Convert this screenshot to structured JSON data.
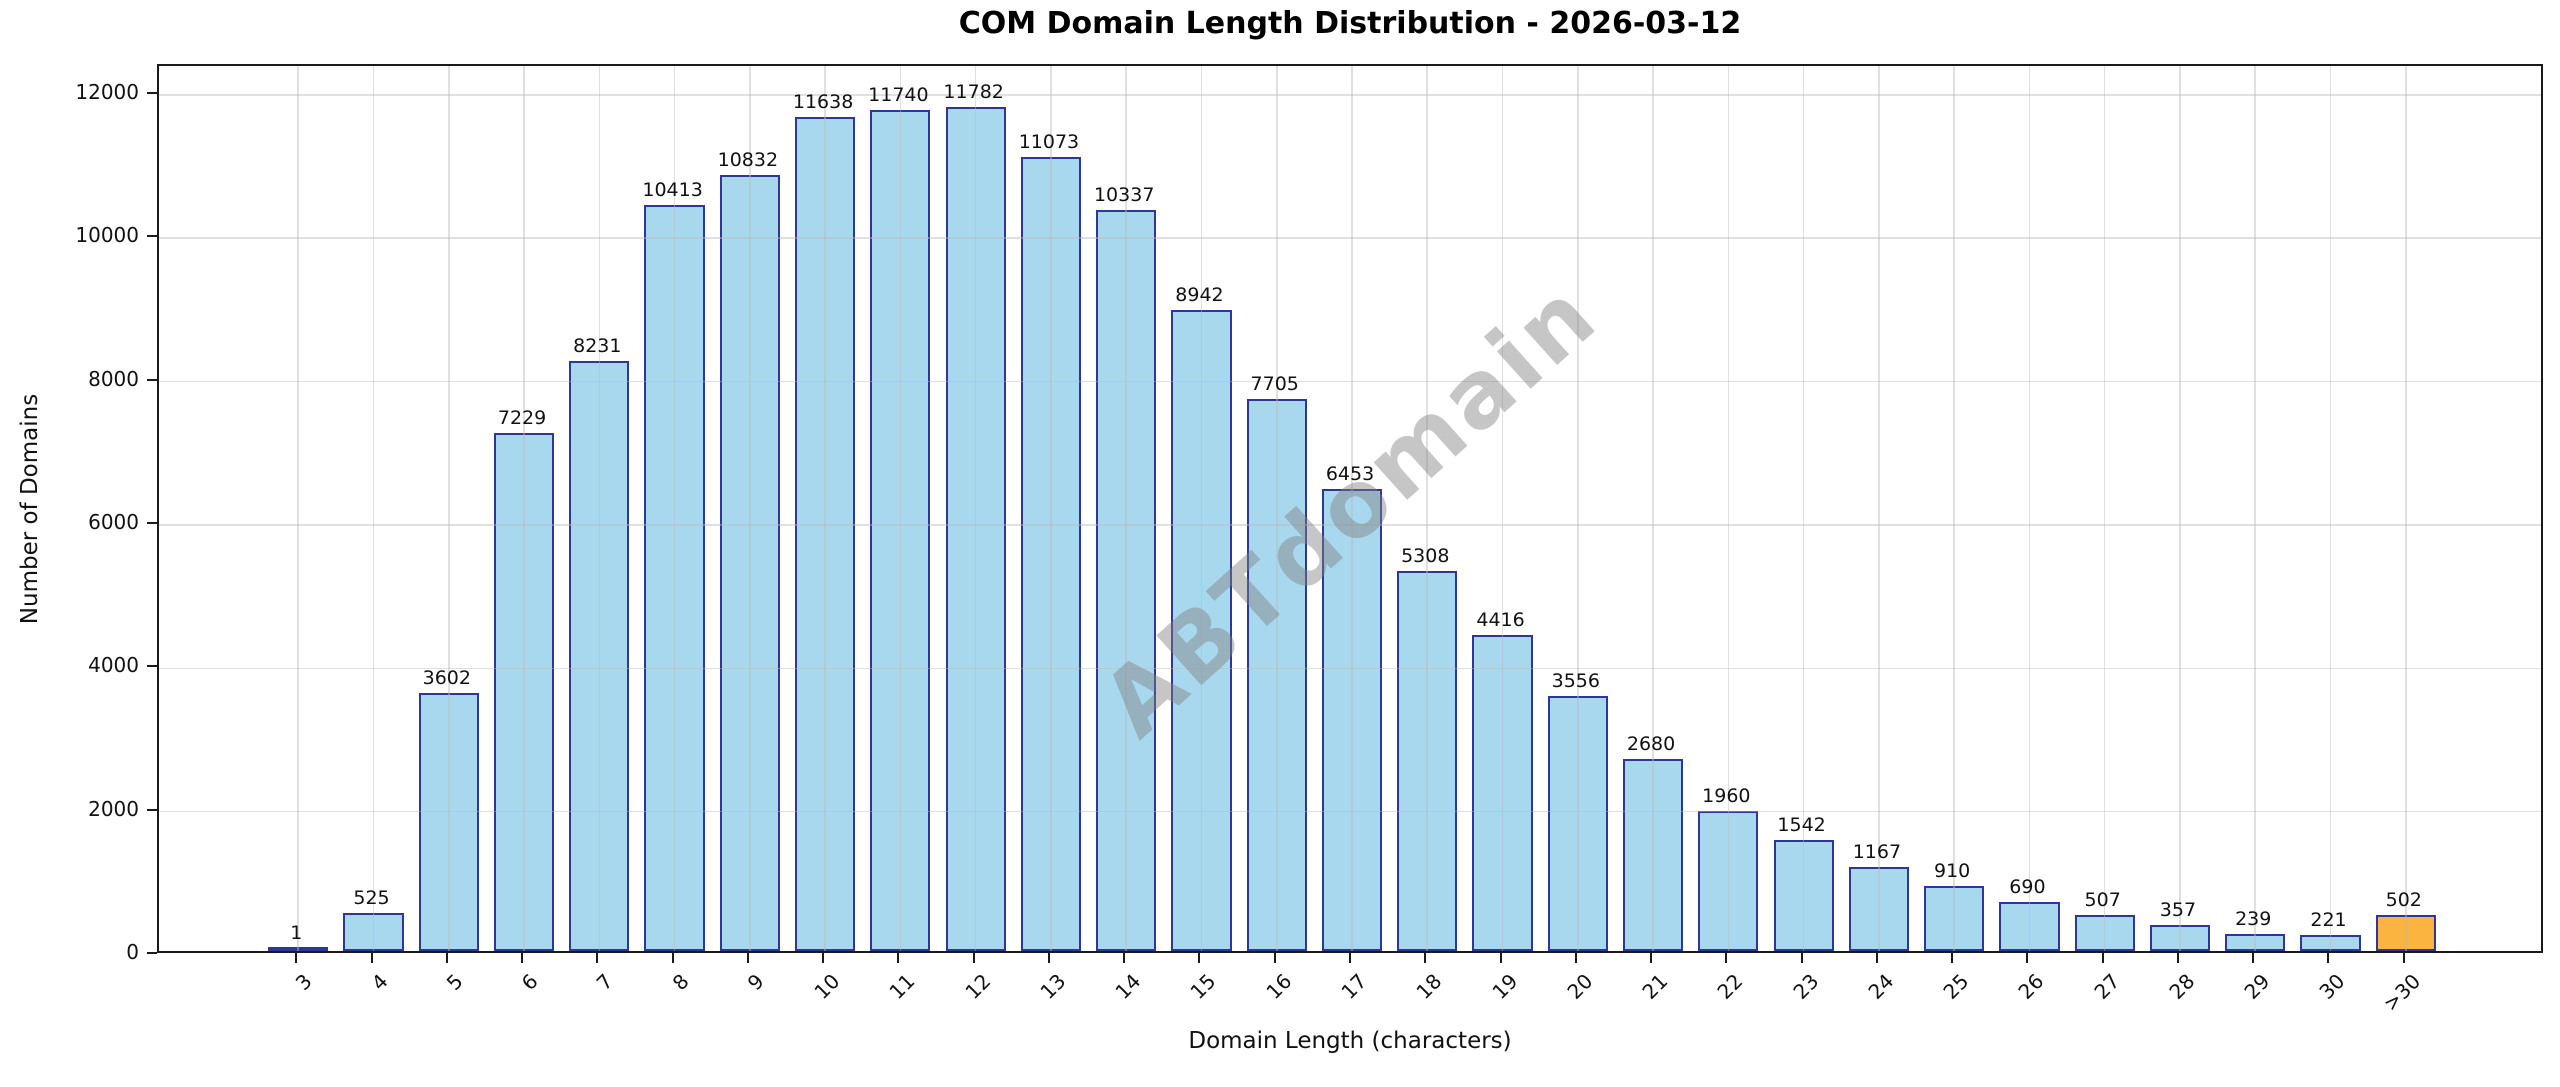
{
  "chart_data": {
    "type": "bar",
    "title": "COM Domain Length Distribution - 2026-03-12",
    "xlabel": "Domain Length (characters)",
    "ylabel": "Number of Domains",
    "categories": [
      "3",
      "4",
      "5",
      "6",
      "7",
      "8",
      "9",
      "10",
      "11",
      "12",
      "13",
      "14",
      "15",
      "16",
      "17",
      "18",
      "19",
      "20",
      "21",
      "22",
      "23",
      "24",
      "25",
      "26",
      "27",
      "28",
      "29",
      "30",
      ">30"
    ],
    "values": [
      1,
      525,
      3602,
      7229,
      8231,
      10413,
      10832,
      11638,
      11740,
      11782,
      11073,
      10337,
      8942,
      7705,
      6453,
      5308,
      4416,
      3556,
      2680,
      1960,
      1542,
      1167,
      910,
      690,
      507,
      357,
      239,
      221,
      502
    ],
    "bar_value_labels_shown": true,
    "yticks": [
      0,
      2000,
      4000,
      6000,
      8000,
      10000,
      12000
    ],
    "ylim": [
      0,
      12404
    ],
    "grid": true,
    "legend": "none",
    "bar_color": "#a8d8ee",
    "bar_edge_color": "#2f3699",
    "highlight_category": ">30",
    "highlight_color": "#fcb441",
    "watermark": {
      "text": "ABTdomain",
      "color": "rgba(128,128,128,0.45)",
      "angle_deg": -42
    }
  }
}
